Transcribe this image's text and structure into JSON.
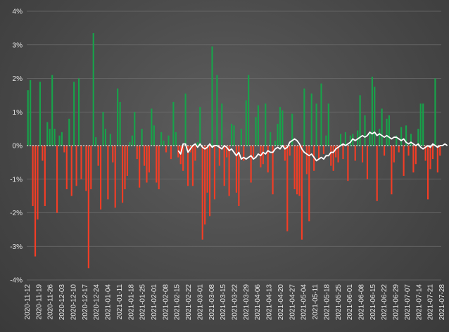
{
  "chart_data": {
    "type": "bar",
    "x_tick_labels": [
      "2020-11-12",
      "2020-11-19",
      "2020-11-26",
      "2020-12-03",
      "2020-12-10",
      "2020-12-17",
      "2020-12-24",
      "2021-01-04",
      "2021-01-11",
      "2021-01-18",
      "2021-01-25",
      "2021-02-01",
      "2021-02-08",
      "2021-02-15",
      "2021-02-22",
      "2021-03-01",
      "2021-03-08",
      "2021-03-15",
      "2021-03-22",
      "2021-03-29",
      "2021-04-06",
      "2021-04-13",
      "2021-04-20",
      "2021-04-27",
      "2021-05-04",
      "2021-05-11",
      "2021-05-18",
      "2021-05-25",
      "2021-06-01",
      "2021-06-08",
      "2021-06-15",
      "2021-06-22",
      "2021-06-29",
      "2021-07-07",
      "2021-07-14",
      "2021-07-21",
      "2021-07-28"
    ],
    "y_tick_labels": [
      "4%",
      "3%",
      "2%",
      "1%",
      "0%",
      "-1%",
      "-2%",
      "-3%",
      "-4%"
    ],
    "ylim": [
      -4,
      4
    ],
    "grid": true,
    "series": [
      {
        "type": "bar",
        "positive_color": "#17a34a",
        "negative_color": "#f43d25",
        "values": [
          1.65,
          1.95,
          -1.8,
          -3.3,
          -2.2,
          1.9,
          -0.45,
          -1.8,
          0.7,
          0.5,
          2.1,
          0.5,
          -2.0,
          0.3,
          0.4,
          -0.2,
          -1.3,
          0.8,
          -1.5,
          1.9,
          -1.2,
          2.0,
          -1.0,
          0.0,
          -1.35,
          -3.65,
          -1.3,
          3.35,
          0.25,
          -0.6,
          -1.9,
          1.0,
          0.5,
          -1.6,
          0.35,
          -0.5,
          -1.85,
          1.7,
          1.3,
          -1.7,
          -1.3,
          -0.9,
          0.1,
          0.3,
          1.0,
          -0.4,
          -1.25,
          0.5,
          -0.6,
          -1.1,
          -0.8,
          1.1,
          0.6,
          -1.1,
          -1.3,
          0.4,
          0.15,
          -0.2,
          0.3,
          -0.4,
          1.3,
          0.4,
          -0.35,
          -0.55,
          -0.75,
          1.55,
          -1.2,
          -0.2,
          -1.2,
          -0.45,
          0.1,
          1.15,
          -2.8,
          -2.35,
          -1.4,
          -2.1,
          2.95,
          -1.6,
          2.1,
          -0.6,
          1.25,
          -1.2,
          -0.35,
          -1.5,
          0.65,
          0.6,
          -1.4,
          -1.8,
          0.5,
          -0.45,
          1.35,
          2.1,
          -1.1,
          -0.35,
          0.85,
          1.2,
          -0.65,
          -0.55,
          1.25,
          -0.8,
          0.4,
          -1.45,
          0.15,
          0.65,
          1.15,
          1.05,
          -0.45,
          -2.55,
          -0.3,
          0.95,
          -1.3,
          -1.45,
          -1.5,
          -2.8,
          1.7,
          -0.85,
          -2.25,
          1.55,
          -0.75,
          1.25,
          -0.4,
          1.85,
          -0.25,
          0.3,
          1.25,
          -0.6,
          -0.75,
          -0.35,
          -0.5,
          0.35,
          -0.4,
          0.4,
          -1.05,
          0.3,
          0.35,
          -0.45,
          0.45,
          1.5,
          -0.5,
          0.9,
          -1.0,
          0.4,
          2.05,
          1.75,
          -1.65,
          0.5,
          1.1,
          -0.3,
          0.8,
          0.9,
          -1.45,
          -0.5,
          0.3,
          -0.2,
          0.55,
          -0.9,
          0.6,
          -0.3,
          0.35,
          -0.8,
          -0.55,
          0.5,
          1.25,
          1.25,
          -0.45,
          -1.6,
          -0.7,
          -0.4,
          2.0,
          -0.8,
          -0.3
        ]
      },
      {
        "type": "line",
        "color": "#ffffff",
        "start_index": 62,
        "values": [
          -0.15,
          -0.25,
          0.05,
          0.05,
          -0.2,
          -0.1,
          0.0,
          0.05,
          -0.05,
          0.05,
          -0.05,
          -0.1,
          -0.05,
          0.05,
          -0.05,
          0.0,
          0.0,
          -0.05,
          -0.1,
          0.0,
          -0.05,
          -0.15,
          -0.1,
          -0.2,
          -0.3,
          -0.2,
          -0.4,
          -0.35,
          -0.4,
          -0.35,
          -0.3,
          -0.4,
          -0.35,
          -0.25,
          -0.3,
          -0.2,
          -0.25,
          -0.15,
          -0.2,
          -0.2,
          -0.1,
          -0.05,
          -0.1,
          0.0,
          -0.1,
          -0.05,
          0.1,
          0.15,
          0.2,
          0.15,
          0.05,
          -0.1,
          -0.2,
          -0.25,
          -0.3,
          -0.25,
          -0.35,
          -0.45,
          -0.4,
          -0.35,
          -0.4,
          -0.3,
          -0.3,
          -0.2,
          -0.2,
          -0.1,
          -0.05,
          0.0,
          0.05,
          0.0,
          0.05,
          0.1,
          0.2,
          0.15,
          0.2,
          0.25,
          0.3,
          0.25,
          0.3,
          0.4,
          0.35,
          0.4,
          0.3,
          0.35,
          0.3,
          0.25,
          0.3,
          0.25,
          0.2,
          0.25,
          0.25,
          0.2,
          0.15,
          0.2,
          0.1,
          0.05,
          0.1,
          0.05,
          0.0,
          0.05,
          -0.05,
          -0.1,
          -0.05,
          0.0,
          -0.05,
          0.05,
          0.0,
          -0.05,
          0.0,
          0.0,
          0.05,
          0.0
        ]
      }
    ]
  }
}
